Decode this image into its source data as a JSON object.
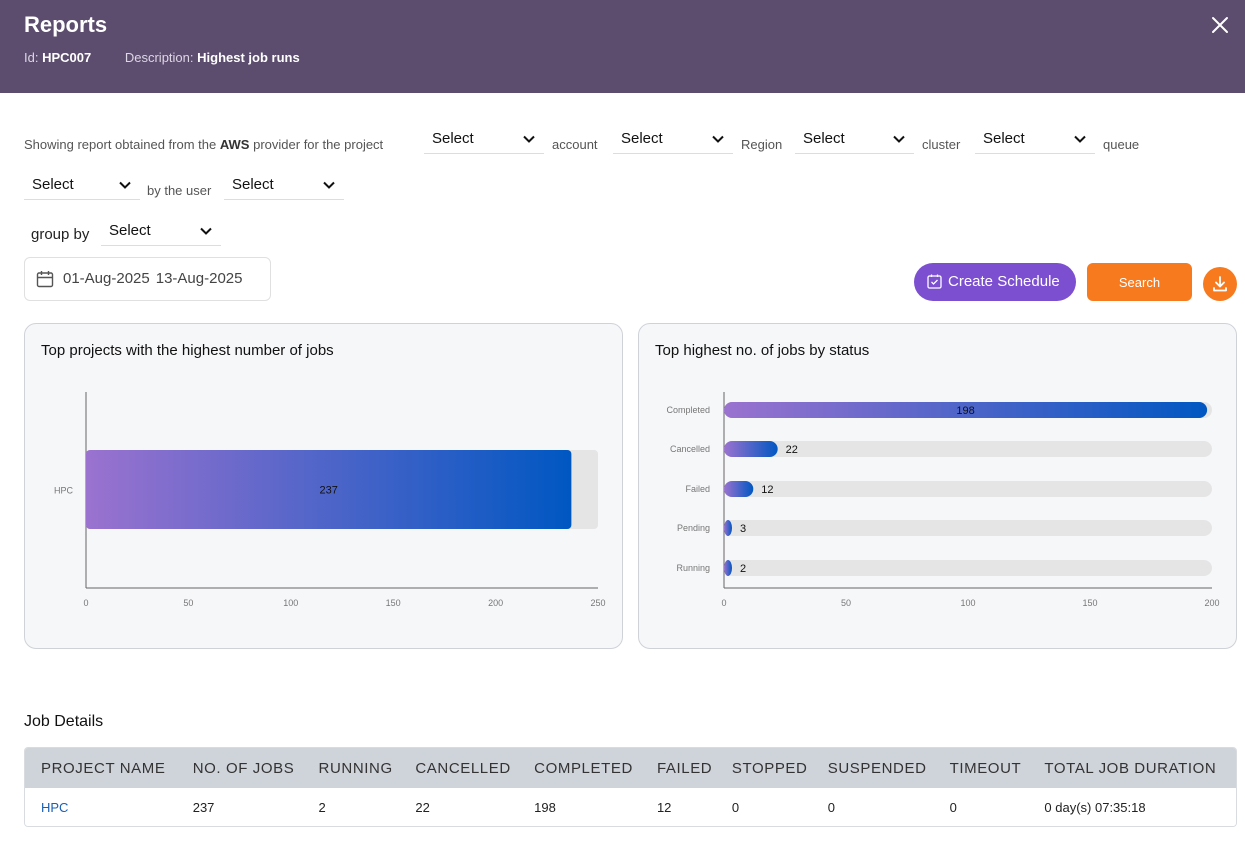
{
  "header": {
    "title": "Reports",
    "id_label": "Id:",
    "id_value": "HPC007",
    "desc_label": "Description:",
    "desc_value": "Highest job runs"
  },
  "filters": {
    "prefix": "Showing report obtained from the",
    "provider": "AWS",
    "provider_suffix": "provider for the project",
    "project_select": "Select",
    "account_label": "account",
    "account_select": "Select",
    "region_label": "Region",
    "region_select": "Select",
    "cluster_label": "cluster",
    "cluster_select": "Select",
    "queue_label": "queue",
    "queue_select": "Select",
    "user_label": "by the user",
    "user_select": "Select",
    "group_label": "group by",
    "group_select": "Select"
  },
  "date_range": {
    "start": "01-Aug-2025",
    "end": "13-Aug-2025"
  },
  "actions": {
    "schedule_label": "Create Schedule",
    "search_label": "Search"
  },
  "colors": {
    "header": "#5c4d6e",
    "schedule": "#7b4fd0",
    "accent": "#f77a1e",
    "bar_start": "#9b72cf",
    "bar_end": "#0057c2",
    "track": "#e5e5e5"
  },
  "chart_data": [
    {
      "type": "bar",
      "orientation": "horizontal",
      "title": "Top projects with the highest number of jobs",
      "categories": [
        "HPC"
      ],
      "values": [
        237
      ],
      "xlim": [
        0,
        250
      ],
      "xticks": [
        0,
        50,
        100,
        150,
        200,
        250
      ]
    },
    {
      "type": "bar",
      "orientation": "horizontal",
      "title": "Top highest no. of jobs by status",
      "categories": [
        "Completed",
        "Cancelled",
        "Failed",
        "Pending",
        "Running"
      ],
      "values": [
        198,
        22,
        12,
        3,
        2
      ],
      "xlim": [
        0,
        200
      ],
      "xticks": [
        0,
        50,
        100,
        150,
        200
      ]
    }
  ],
  "job_details": {
    "title": "Job Details",
    "columns": [
      "PROJECT NAME",
      "NO. OF JOBS",
      "RUNNING",
      "CANCELLED",
      "COMPLETED",
      "FAILED",
      "STOPPED",
      "SUSPENDED",
      "TIMEOUT",
      "TOTAL JOB DURATION"
    ],
    "rows": [
      [
        "HPC",
        "237",
        "2",
        "22",
        "198",
        "12",
        "0",
        "0",
        "0",
        "0 day(s) 07:35:18"
      ]
    ]
  }
}
